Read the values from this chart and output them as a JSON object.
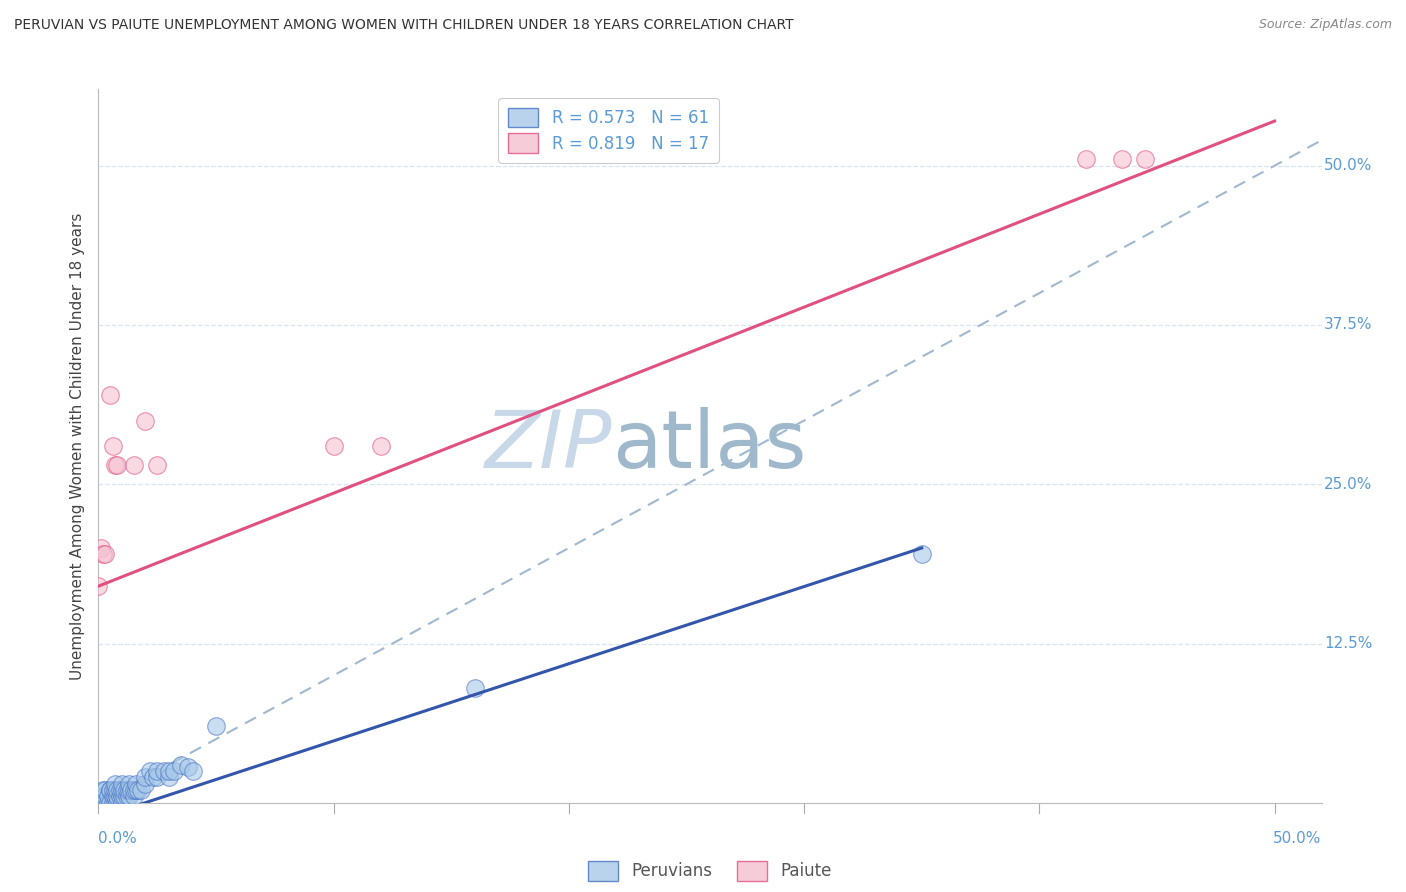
{
  "title": "PERUVIAN VS PAIUTE UNEMPLOYMENT AMONG WOMEN WITH CHILDREN UNDER 18 YEARS CORRELATION CHART",
  "source": "Source: ZipAtlas.com",
  "ylabel": "Unemployment Among Women with Children Under 18 years",
  "xlim": [
    0.0,
    0.52
  ],
  "ylim": [
    0.0,
    0.56
  ],
  "right_yticks": [
    0.125,
    0.25,
    0.375,
    0.5
  ],
  "right_yticklabels": [
    "12.5%",
    "25.0%",
    "37.5%",
    "50.0%"
  ],
  "blue_scatter": [
    [
      0.0,
      0.0
    ],
    [
      0.0,
      0.0
    ],
    [
      0.001,
      0.0
    ],
    [
      0.001,
      0.0
    ],
    [
      0.001,
      0.005
    ],
    [
      0.002,
      0.0
    ],
    [
      0.002,
      0.01
    ],
    [
      0.003,
      0.0
    ],
    [
      0.003,
      0.005
    ],
    [
      0.003,
      0.01
    ],
    [
      0.004,
      0.0
    ],
    [
      0.004,
      0.005
    ],
    [
      0.005,
      0.0
    ],
    [
      0.005,
      0.01
    ],
    [
      0.005,
      0.01
    ],
    [
      0.006,
      0.0
    ],
    [
      0.006,
      0.005
    ],
    [
      0.006,
      0.01
    ],
    [
      0.007,
      0.0
    ],
    [
      0.007,
      0.005
    ],
    [
      0.007,
      0.01
    ],
    [
      0.007,
      0.015
    ],
    [
      0.008,
      0.0
    ],
    [
      0.008,
      0.005
    ],
    [
      0.008,
      0.01
    ],
    [
      0.009,
      0.005
    ],
    [
      0.009,
      0.01
    ],
    [
      0.01,
      0.0
    ],
    [
      0.01,
      0.005
    ],
    [
      0.01,
      0.01
    ],
    [
      0.01,
      0.015
    ],
    [
      0.011,
      0.005
    ],
    [
      0.011,
      0.01
    ],
    [
      0.012,
      0.005
    ],
    [
      0.012,
      0.01
    ],
    [
      0.013,
      0.005
    ],
    [
      0.013,
      0.01
    ],
    [
      0.013,
      0.015
    ],
    [
      0.014,
      0.01
    ],
    [
      0.015,
      0.005
    ],
    [
      0.015,
      0.01
    ],
    [
      0.016,
      0.01
    ],
    [
      0.016,
      0.015
    ],
    [
      0.017,
      0.01
    ],
    [
      0.018,
      0.01
    ],
    [
      0.02,
      0.015
    ],
    [
      0.02,
      0.02
    ],
    [
      0.022,
      0.025
    ],
    [
      0.023,
      0.02
    ],
    [
      0.025,
      0.02
    ],
    [
      0.025,
      0.025
    ],
    [
      0.028,
      0.025
    ],
    [
      0.03,
      0.02
    ],
    [
      0.03,
      0.025
    ],
    [
      0.032,
      0.025
    ],
    [
      0.035,
      0.03
    ],
    [
      0.038,
      0.028
    ],
    [
      0.04,
      0.025
    ],
    [
      0.05,
      0.06
    ],
    [
      0.16,
      0.09
    ],
    [
      0.35,
      0.195
    ]
  ],
  "pink_scatter": [
    [
      0.0,
      0.17
    ],
    [
      0.001,
      0.2
    ],
    [
      0.002,
      0.195
    ],
    [
      0.003,
      0.195
    ],
    [
      0.005,
      0.32
    ],
    [
      0.006,
      0.28
    ],
    [
      0.007,
      0.265
    ],
    [
      0.008,
      0.265
    ],
    [
      0.015,
      0.265
    ],
    [
      0.02,
      0.3
    ],
    [
      0.025,
      0.265
    ],
    [
      0.1,
      0.28
    ],
    [
      0.12,
      0.28
    ],
    [
      0.42,
      0.505
    ],
    [
      0.435,
      0.505
    ],
    [
      0.445,
      0.505
    ]
  ],
  "blue_line": {
    "x": [
      0.0,
      0.35
    ],
    "y": [
      -0.012,
      0.2
    ]
  },
  "pink_line": {
    "x": [
      0.0,
      0.5
    ],
    "y": [
      0.17,
      0.535
    ]
  },
  "identity_line": {
    "x": [
      0.0,
      0.52
    ],
    "y": [
      0.0,
      0.52
    ]
  },
  "watermark_zip": "ZIP",
  "watermark_atlas": "atlas",
  "title_color": "#333333",
  "blue_color": "#a8c8e8",
  "blue_edge_color": "#4472c4",
  "blue_line_color": "#3355aa",
  "pink_color": "#f5c0d0",
  "pink_edge_color": "#e05080",
  "pink_line_color": "#e05080",
  "identity_color": "#a0b8d0",
  "source_color": "#888888",
  "watermark_zip_color": "#c8d8e8",
  "watermark_atlas_color": "#a0b8cc",
  "right_label_color": "#5b9bd5",
  "gridline_color": "#d8e4f0"
}
